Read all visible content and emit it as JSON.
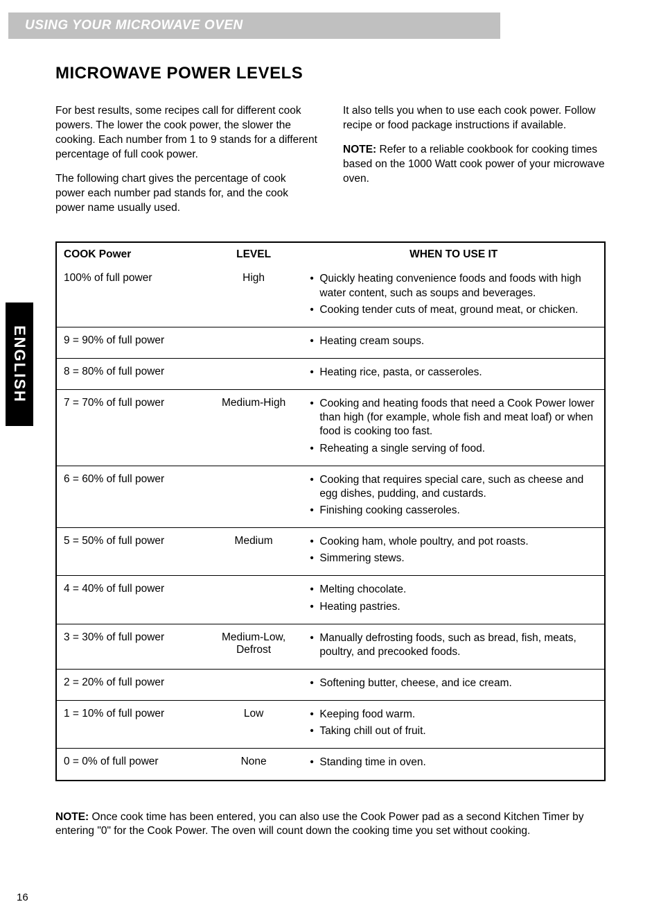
{
  "banner": {
    "title": "USING YOUR MICROWAVE OVEN"
  },
  "heading": "MICROWAVE POWER LEVELS",
  "intro": {
    "left": {
      "p1": "For best results, some recipes call for different cook powers. The lower the cook power, the slower the cooking. Each number from 1 to 9 stands for a different percentage of full cook power.",
      "p2": "The following chart gives the percentage of cook power each number pad stands for, and the cook power name usually used."
    },
    "right": {
      "p1": "It also tells you when to use each cook power. Follow recipe or food package instructions if available.",
      "note_label": "NOTE:",
      "note_text": " Refer to a reliable cookbook for cooking times based on the 1000 Watt cook power of your microwave oven."
    }
  },
  "table": {
    "headers": {
      "power": "COOK Power",
      "level": "LEVEL",
      "when": "WHEN TO USE IT"
    },
    "rows": [
      {
        "power": "100% of full power",
        "level": "High",
        "when": [
          "Quickly heating convenience foods and foods with high water content, such as soups and beverages.",
          "Cooking tender cuts of meat, ground meat, or chicken."
        ]
      },
      {
        "power": "9 = 90% of full power",
        "level": "",
        "when": [
          "Heating cream soups."
        ]
      },
      {
        "power": "8 = 80% of full power",
        "level": "",
        "when": [
          "Heating rice, pasta, or casseroles."
        ]
      },
      {
        "power": "7 = 70% of full power",
        "level": "Medium-High",
        "when": [
          "Cooking and heating foods that need a Cook Power lower than high (for example, whole fish and meat loaf) or when food is cooking too fast.",
          "Reheating a single serving of food."
        ]
      },
      {
        "power": "6 = 60% of full power",
        "level": "",
        "when": [
          "Cooking that requires special care, such as cheese and egg dishes, pudding, and custards.",
          "Finishing cooking casseroles."
        ]
      },
      {
        "power": "5 = 50% of full power",
        "level": "Medium",
        "when": [
          "Cooking ham, whole poultry, and pot roasts.",
          "Simmering stews."
        ]
      },
      {
        "power": "4 = 40% of full power",
        "level": "",
        "when": [
          "Melting chocolate.",
          "Heating pastries."
        ]
      },
      {
        "power": "3 = 30% of full power",
        "level": "Medium-Low, Defrost",
        "when": [
          "Manually defrosting foods, such as bread, fish, meats, poultry, and precooked foods."
        ]
      },
      {
        "power": "2 = 20% of full power",
        "level": "",
        "when": [
          "Softening butter, cheese, and ice cream."
        ]
      },
      {
        "power": "1 = 10% of full power",
        "level": "Low",
        "when": [
          "Keeping food warm.",
          "Taking chill out of fruit."
        ]
      },
      {
        "power": "0 = 0% of full power",
        "level": "None",
        "when": [
          " Standing time in oven."
        ]
      }
    ]
  },
  "footer": {
    "note_label": "NOTE:",
    "note_text": " Once cook time has been entered, you can also use the Cook Power pad as a second Kitchen Timer by entering \"0\" for the Cook Power. The oven will count down the cooking time you set without cooking."
  },
  "sidebar": "ENGLISH",
  "page_number": "16"
}
